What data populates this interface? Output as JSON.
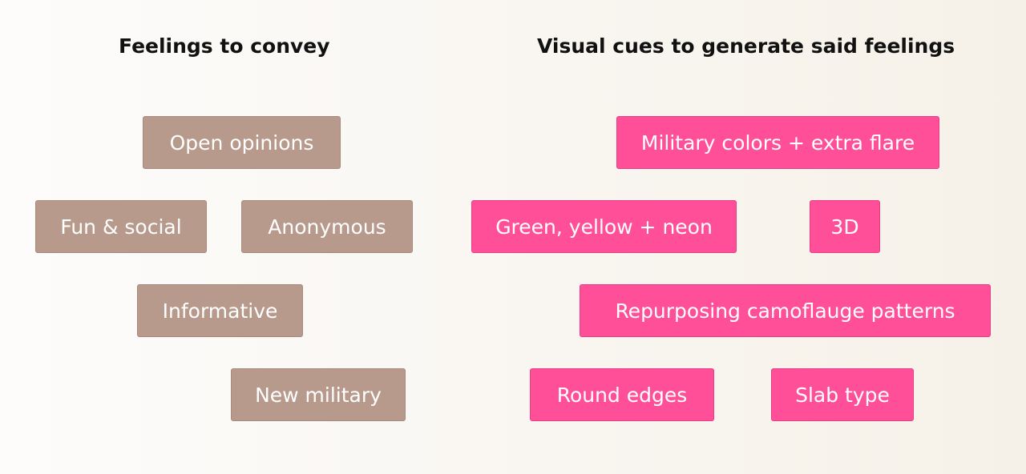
{
  "headings": {
    "feelings": "Feelings to convey",
    "cues": "Visual cues to generate said feelings"
  },
  "feelings": [
    "Open opinions",
    "Fun & social",
    "Anonymous",
    "Informative",
    "New military"
  ],
  "cues": [
    "Military colors + extra flare",
    "Green, yellow + neon",
    "3D",
    "Repurposing camoflauge patterns",
    "Round edges",
    "Slab type"
  ],
  "colors": {
    "feeling_chip": "#b89a8d",
    "cue_chip": "#ff4f98",
    "heading_text": "#111111",
    "chip_text": "#ffffff"
  }
}
